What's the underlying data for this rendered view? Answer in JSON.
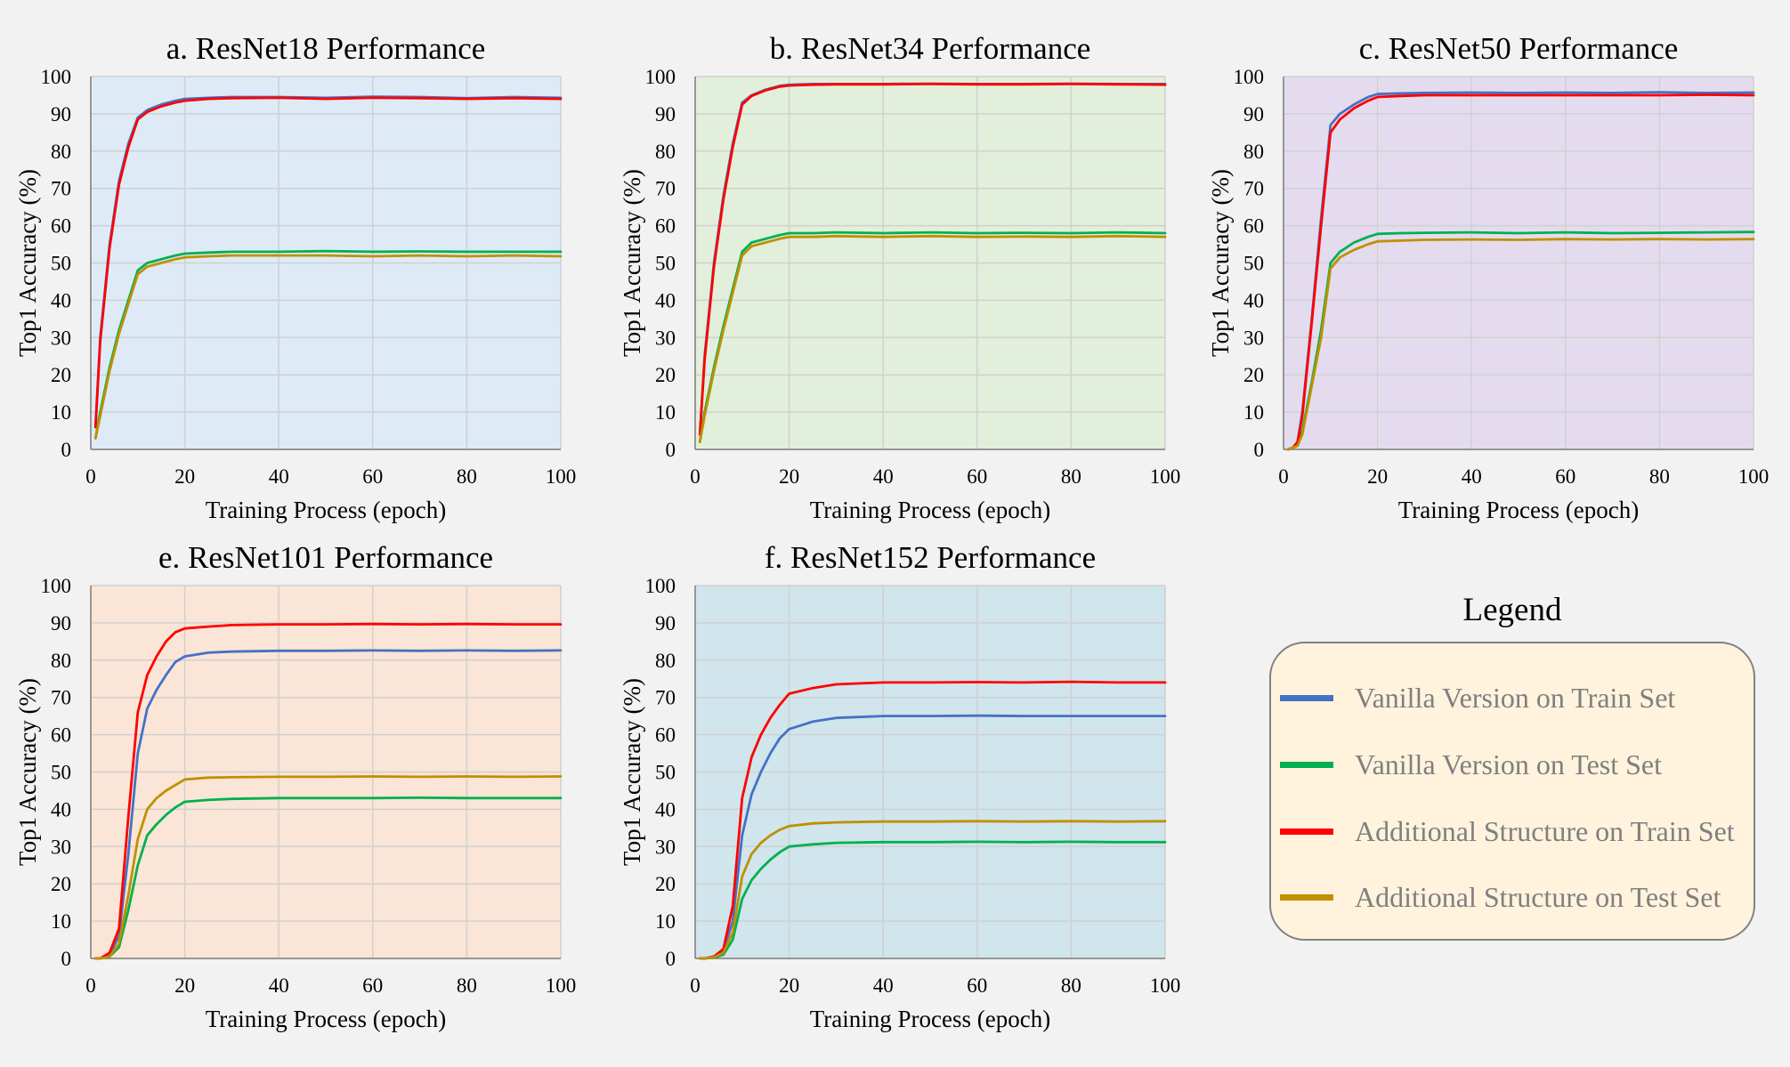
{
  "colors": {
    "vanilla_train": "#4472c4",
    "vanilla_test": "#00b050",
    "additional_train": "#ff0000",
    "additional_test": "#bf9000"
  },
  "legend": {
    "title": "Legend",
    "items": [
      {
        "label": "Vanilla Version on Train Set",
        "color": "#4472c4"
      },
      {
        "label": "Vanilla Version on Test Set",
        "color": "#00b050"
      },
      {
        "label": "Additional Structure on Train Set",
        "color": "#ff0000"
      },
      {
        "label": "Additional Structure on Test Set",
        "color": "#bf9000"
      }
    ]
  },
  "chart_data": [
    {
      "type": "line",
      "title": "a. ResNet18 Performance",
      "xlabel": "Training Process (epoch)",
      "ylabel": "Top1 Accuracy (%)",
      "xlim": [
        0,
        100
      ],
      "ylim": [
        0,
        100
      ],
      "xticks": [
        0,
        20,
        40,
        60,
        80,
        100
      ],
      "yticks": [
        0,
        10,
        20,
        30,
        40,
        50,
        60,
        70,
        80,
        90,
        100
      ],
      "grid": true,
      "background": "#deebf7",
      "series": [
        {
          "name": "Vanilla Version on Train Set",
          "color": "#4472c4",
          "x": [
            1,
            2,
            4,
            6,
            8,
            10,
            12,
            15,
            18,
            20,
            25,
            30,
            40,
            50,
            60,
            70,
            80,
            90,
            100
          ],
          "y": [
            6,
            30,
            55,
            72,
            82,
            89,
            91,
            92.5,
            93.5,
            94,
            94.3,
            94.5,
            94.5,
            94.3,
            94.6,
            94.5,
            94.2,
            94.5,
            94.3
          ]
        },
        {
          "name": "Vanilla Version on Test Set",
          "color": "#00b050",
          "x": [
            1,
            2,
            4,
            6,
            8,
            10,
            12,
            15,
            18,
            20,
            25,
            30,
            40,
            50,
            60,
            70,
            80,
            90,
            100
          ],
          "y": [
            3,
            10,
            22,
            32,
            40,
            48,
            50,
            51,
            52,
            52.5,
            52.8,
            53,
            53,
            53.2,
            53,
            53.1,
            53,
            53,
            53
          ]
        },
        {
          "name": "Additional Structure on Train Set",
          "color": "#ff0000",
          "x": [
            1,
            2,
            4,
            6,
            8,
            10,
            12,
            15,
            18,
            20,
            25,
            30,
            40,
            50,
            60,
            70,
            80,
            90,
            100
          ],
          "y": [
            6,
            29,
            54,
            71,
            81,
            88.5,
            90.5,
            92,
            93,
            93.5,
            94,
            94.2,
            94.3,
            94,
            94.3,
            94.2,
            94,
            94.2,
            94
          ]
        },
        {
          "name": "Additional Structure on Test Set",
          "color": "#bf9000",
          "x": [
            1,
            2,
            4,
            6,
            8,
            10,
            12,
            15,
            18,
            20,
            25,
            30,
            40,
            50,
            60,
            70,
            80,
            90,
            100
          ],
          "y": [
            3,
            9,
            21,
            31,
            39,
            47,
            49,
            50,
            51,
            51.5,
            51.8,
            52,
            52,
            52,
            51.8,
            52,
            51.8,
            52,
            51.8
          ]
        }
      ]
    },
    {
      "type": "line",
      "title": "b. ResNet34 Performance",
      "xlabel": "Training Process (epoch)",
      "ylabel": "Top1 Accuracy (%)",
      "xlim": [
        0,
        100
      ],
      "ylim": [
        0,
        100
      ],
      "xticks": [
        0,
        20,
        40,
        60,
        80,
        100
      ],
      "yticks": [
        0,
        10,
        20,
        30,
        40,
        50,
        60,
        70,
        80,
        90,
        100
      ],
      "grid": true,
      "background": "#e2efda",
      "series": [
        {
          "name": "Vanilla Version on Train Set",
          "color": "#4472c4",
          "x": [
            1,
            2,
            4,
            6,
            8,
            10,
            12,
            15,
            18,
            20,
            25,
            30,
            40,
            50,
            60,
            70,
            80,
            90,
            100
          ],
          "y": [
            4,
            25,
            50,
            68,
            82,
            93,
            95,
            96.5,
            97.5,
            97.8,
            98,
            98,
            98,
            98.1,
            98,
            98,
            98.1,
            98,
            98
          ]
        },
        {
          "name": "Vanilla Version on Test Set",
          "color": "#00b050",
          "x": [
            1,
            2,
            4,
            6,
            8,
            10,
            12,
            15,
            18,
            20,
            25,
            30,
            40,
            50,
            60,
            70,
            80,
            90,
            100
          ],
          "y": [
            2,
            10,
            22,
            33,
            43,
            53,
            55.5,
            56.5,
            57.5,
            58,
            58,
            58.2,
            58,
            58.2,
            58,
            58.1,
            58,
            58.2,
            58
          ]
        },
        {
          "name": "Additional Structure on Train Set",
          "color": "#ff0000",
          "x": [
            1,
            2,
            4,
            6,
            8,
            10,
            12,
            15,
            18,
            20,
            25,
            30,
            40,
            50,
            60,
            70,
            80,
            90,
            100
          ],
          "y": [
            4,
            24,
            49,
            67,
            81,
            92.5,
            94.8,
            96.3,
            97.3,
            97.6,
            97.8,
            97.9,
            97.9,
            98,
            97.9,
            97.9,
            98,
            97.9,
            97.8
          ]
        },
        {
          "name": "Additional Structure on Test Set",
          "color": "#bf9000",
          "x": [
            1,
            2,
            4,
            6,
            8,
            10,
            12,
            15,
            18,
            20,
            25,
            30,
            40,
            50,
            60,
            70,
            80,
            90,
            100
          ],
          "y": [
            2,
            9,
            21,
            32,
            42,
            52,
            54.5,
            55.5,
            56.5,
            57,
            57,
            57.2,
            57,
            57.2,
            57,
            57.1,
            57,
            57.2,
            57
          ]
        }
      ]
    },
    {
      "type": "line",
      "title": "c. ResNet50 Performance",
      "xlabel": "Training Process (epoch)",
      "ylabel": "Top1 Accuracy (%)",
      "xlim": [
        0,
        100
      ],
      "ylim": [
        0,
        100
      ],
      "xticks": [
        0,
        20,
        40,
        60,
        80,
        100
      ],
      "yticks": [
        0,
        10,
        20,
        30,
        40,
        50,
        60,
        70,
        80,
        90,
        100
      ],
      "grid": true,
      "background": "#e4dcee",
      "series": [
        {
          "name": "Vanilla Version on Train Set",
          "color": "#4472c4",
          "x": [
            1,
            2,
            3,
            4,
            6,
            8,
            10,
            12,
            15,
            18,
            20,
            25,
            30,
            40,
            50,
            60,
            70,
            80,
            90,
            100
          ],
          "y": [
            0,
            0.5,
            2,
            10,
            35,
            62,
            87,
            90,
            92.5,
            94.5,
            95.3,
            95.5,
            95.6,
            95.7,
            95.6,
            95.7,
            95.6,
            95.8,
            95.6,
            95.7
          ]
        },
        {
          "name": "Vanilla Version on Test Set",
          "color": "#00b050",
          "x": [
            1,
            2,
            3,
            4,
            6,
            8,
            10,
            12,
            15,
            18,
            20,
            25,
            30,
            40,
            50,
            60,
            70,
            80,
            90,
            100
          ],
          "y": [
            0,
            0.5,
            1,
            5,
            18,
            32,
            50,
            53,
            55.5,
            57,
            57.8,
            58,
            58.1,
            58.2,
            58,
            58.2,
            58,
            58.1,
            58.2,
            58.3
          ]
        },
        {
          "name": "Additional Structure on Train Set",
          "color": "#ff0000",
          "x": [
            1,
            2,
            3,
            4,
            6,
            8,
            10,
            12,
            15,
            18,
            20,
            25,
            30,
            40,
            50,
            60,
            70,
            80,
            90,
            100
          ],
          "y": [
            0,
            0.5,
            2,
            9,
            34,
            60,
            85,
            88.5,
            91.5,
            93.5,
            94.5,
            94.8,
            95,
            95,
            95,
            95,
            95,
            95,
            95.1,
            95
          ]
        },
        {
          "name": "Additional Structure on Test Set",
          "color": "#bf9000",
          "x": [
            1,
            2,
            3,
            4,
            6,
            8,
            10,
            12,
            15,
            18,
            20,
            25,
            30,
            40,
            50,
            60,
            70,
            80,
            90,
            100
          ],
          "y": [
            0,
            0.5,
            1,
            4,
            17,
            30,
            48.5,
            51.5,
            53.5,
            55,
            55.8,
            56,
            56.2,
            56.3,
            56.2,
            56.4,
            56.3,
            56.4,
            56.3,
            56.4
          ]
        }
      ]
    },
    {
      "type": "line",
      "title": "e. ResNet101 Performance",
      "xlabel": "Training Process (epoch)",
      "ylabel": "Top1 Accuracy (%)",
      "xlim": [
        0,
        100
      ],
      "ylim": [
        0,
        100
      ],
      "xticks": [
        0,
        20,
        40,
        60,
        80,
        100
      ],
      "yticks": [
        0,
        10,
        20,
        30,
        40,
        50,
        60,
        70,
        80,
        90,
        100
      ],
      "grid": true,
      "background": "#fbe5d6",
      "series": [
        {
          "name": "Vanilla Version on Train Set",
          "color": "#4472c4",
          "x": [
            1,
            2,
            4,
            6,
            8,
            10,
            12,
            14,
            16,
            18,
            20,
            25,
            30,
            40,
            50,
            60,
            70,
            80,
            90,
            100
          ],
          "y": [
            0,
            0,
            1,
            6,
            28,
            55,
            67,
            72,
            76,
            79.5,
            81,
            82,
            82.3,
            82.5,
            82.5,
            82.6,
            82.5,
            82.6,
            82.5,
            82.6
          ]
        },
        {
          "name": "Vanilla Version on Test Set",
          "color": "#00b050",
          "x": [
            1,
            2,
            4,
            6,
            8,
            10,
            12,
            14,
            16,
            18,
            20,
            25,
            30,
            40,
            50,
            60,
            70,
            80,
            90,
            100
          ],
          "y": [
            0,
            0,
            0.5,
            3,
            13,
            25,
            33,
            36,
            38.5,
            40.5,
            42,
            42.5,
            42.8,
            43,
            43,
            43,
            43.1,
            43,
            43,
            43
          ]
        },
        {
          "name": "Additional Structure on Train Set",
          "color": "#ff0000",
          "x": [
            1,
            2,
            4,
            6,
            8,
            10,
            12,
            14,
            16,
            18,
            20,
            25,
            30,
            40,
            50,
            60,
            70,
            80,
            90,
            100
          ],
          "y": [
            0,
            0,
            1.5,
            8,
            38,
            66,
            76,
            81,
            85,
            87.5,
            88.5,
            89,
            89.4,
            89.6,
            89.6,
            89.7,
            89.6,
            89.7,
            89.6,
            89.6
          ]
        },
        {
          "name": "Additional Structure on Test Set",
          "color": "#bf9000",
          "x": [
            1,
            2,
            4,
            6,
            8,
            10,
            12,
            14,
            16,
            18,
            20,
            25,
            30,
            40,
            50,
            60,
            70,
            80,
            90,
            100
          ],
          "y": [
            0,
            0,
            0.5,
            4,
            17,
            32,
            40,
            43,
            45,
            46.5,
            48,
            48.5,
            48.6,
            48.7,
            48.7,
            48.8,
            48.7,
            48.8,
            48.7,
            48.8
          ]
        }
      ]
    },
    {
      "type": "line",
      "title": "f. ResNet152 Performance",
      "xlabel": "Training Process (epoch)",
      "ylabel": "Top1 Accuracy (%)",
      "xlim": [
        0,
        100
      ],
      "ylim": [
        0,
        100
      ],
      "xticks": [
        0,
        20,
        40,
        60,
        80,
        100
      ],
      "yticks": [
        0,
        10,
        20,
        30,
        40,
        50,
        60,
        70,
        80,
        90,
        100
      ],
      "grid": true,
      "background": "#d0e5ec",
      "series": [
        {
          "name": "Vanilla Version on Train Set",
          "color": "#4472c4",
          "x": [
            1,
            2,
            4,
            6,
            8,
            10,
            12,
            14,
            16,
            18,
            20,
            25,
            30,
            40,
            50,
            60,
            70,
            80,
            90,
            100
          ],
          "y": [
            0,
            0,
            0.5,
            2,
            10,
            33,
            44,
            50,
            55,
            59,
            61.5,
            63.5,
            64.5,
            65,
            65,
            65.1,
            65,
            65,
            65,
            65
          ]
        },
        {
          "name": "Vanilla Version on Test Set",
          "color": "#00b050",
          "x": [
            1,
            2,
            4,
            6,
            8,
            10,
            12,
            14,
            16,
            18,
            20,
            25,
            30,
            40,
            50,
            60,
            70,
            80,
            90,
            100
          ],
          "y": [
            0,
            0,
            0.2,
            1,
            5,
            16,
            21,
            24,
            26.5,
            28.5,
            30,
            30.6,
            31,
            31.2,
            31.2,
            31.3,
            31.2,
            31.3,
            31.2,
            31.2
          ]
        },
        {
          "name": "Additional Structure on Train Set",
          "color": "#ff0000",
          "x": [
            1,
            2,
            4,
            6,
            8,
            10,
            12,
            14,
            16,
            18,
            20,
            25,
            30,
            40,
            50,
            60,
            70,
            80,
            90,
            100
          ],
          "y": [
            0,
            0,
            0.5,
            2.5,
            14,
            43,
            54,
            60,
            64.5,
            68,
            71,
            72.5,
            73.5,
            74,
            74,
            74.1,
            74,
            74.2,
            74,
            74
          ]
        },
        {
          "name": "Additional Structure on Test Set",
          "color": "#bf9000",
          "x": [
            1,
            2,
            4,
            6,
            8,
            10,
            12,
            14,
            16,
            18,
            20,
            25,
            30,
            40,
            50,
            60,
            70,
            80,
            90,
            100
          ],
          "y": [
            0,
            0,
            0.3,
            1.5,
            7,
            22,
            28,
            31,
            33,
            34.5,
            35.5,
            36.2,
            36.5,
            36.7,
            36.7,
            36.8,
            36.7,
            36.8,
            36.7,
            36.8
          ]
        }
      ]
    }
  ]
}
